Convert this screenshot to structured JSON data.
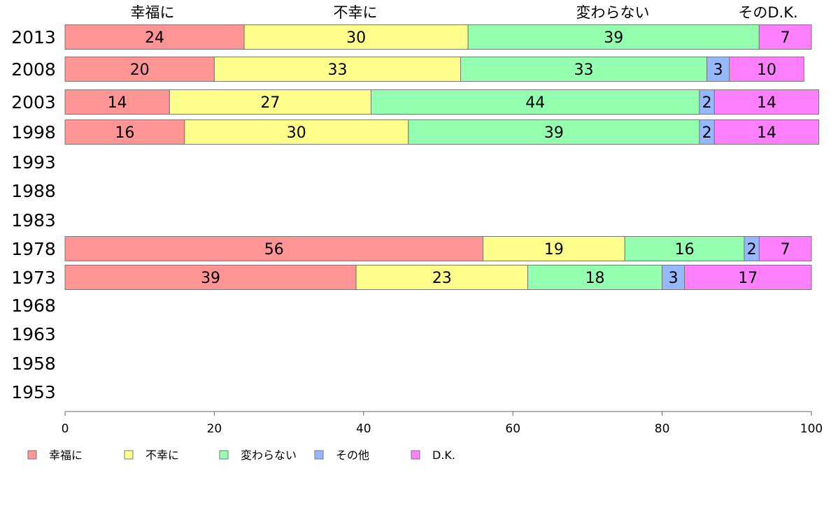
{
  "chart_data": {
    "type": "bar",
    "orientation": "horizontal",
    "stacked": true,
    "categories": [
      "2013",
      "2008",
      "2003",
      "1998",
      "1993",
      "1988",
      "1983",
      "1978",
      "1973",
      "1968",
      "1963",
      "1958",
      "1953"
    ],
    "series": [
      {
        "name": "幸福に",
        "color": "#ff9595",
        "values": [
          24,
          20,
          14,
          16,
          null,
          null,
          null,
          56,
          39,
          null,
          null,
          null,
          null
        ]
      },
      {
        "name": "不幸に",
        "color": "#ffff8c",
        "values": [
          30,
          33,
          27,
          30,
          null,
          null,
          null,
          19,
          23,
          null,
          null,
          null,
          null
        ]
      },
      {
        "name": "変わらない",
        "color": "#95ffb0",
        "values": [
          39,
          33,
          44,
          39,
          null,
          null,
          null,
          16,
          18,
          null,
          null,
          null,
          null
        ]
      },
      {
        "name": "その他",
        "color": "#95b8ff",
        "values": [
          0,
          3,
          2,
          2,
          null,
          null,
          null,
          2,
          3,
          null,
          null,
          null,
          null
        ]
      },
      {
        "name": "D.K.",
        "color": "#ff80ff",
        "values": [
          7,
          10,
          14,
          14,
          null,
          null,
          null,
          7,
          17,
          null,
          null,
          null,
          null
        ]
      }
    ],
    "top_labels": [
      "幸福に",
      "不幸に",
      "変わらない",
      "そのD.K."
    ],
    "xlim": [
      0,
      100
    ],
    "xticks": [
      "0",
      "20",
      "40",
      "60",
      "80",
      "100"
    ],
    "grid": false,
    "legend_position": "bottom"
  }
}
